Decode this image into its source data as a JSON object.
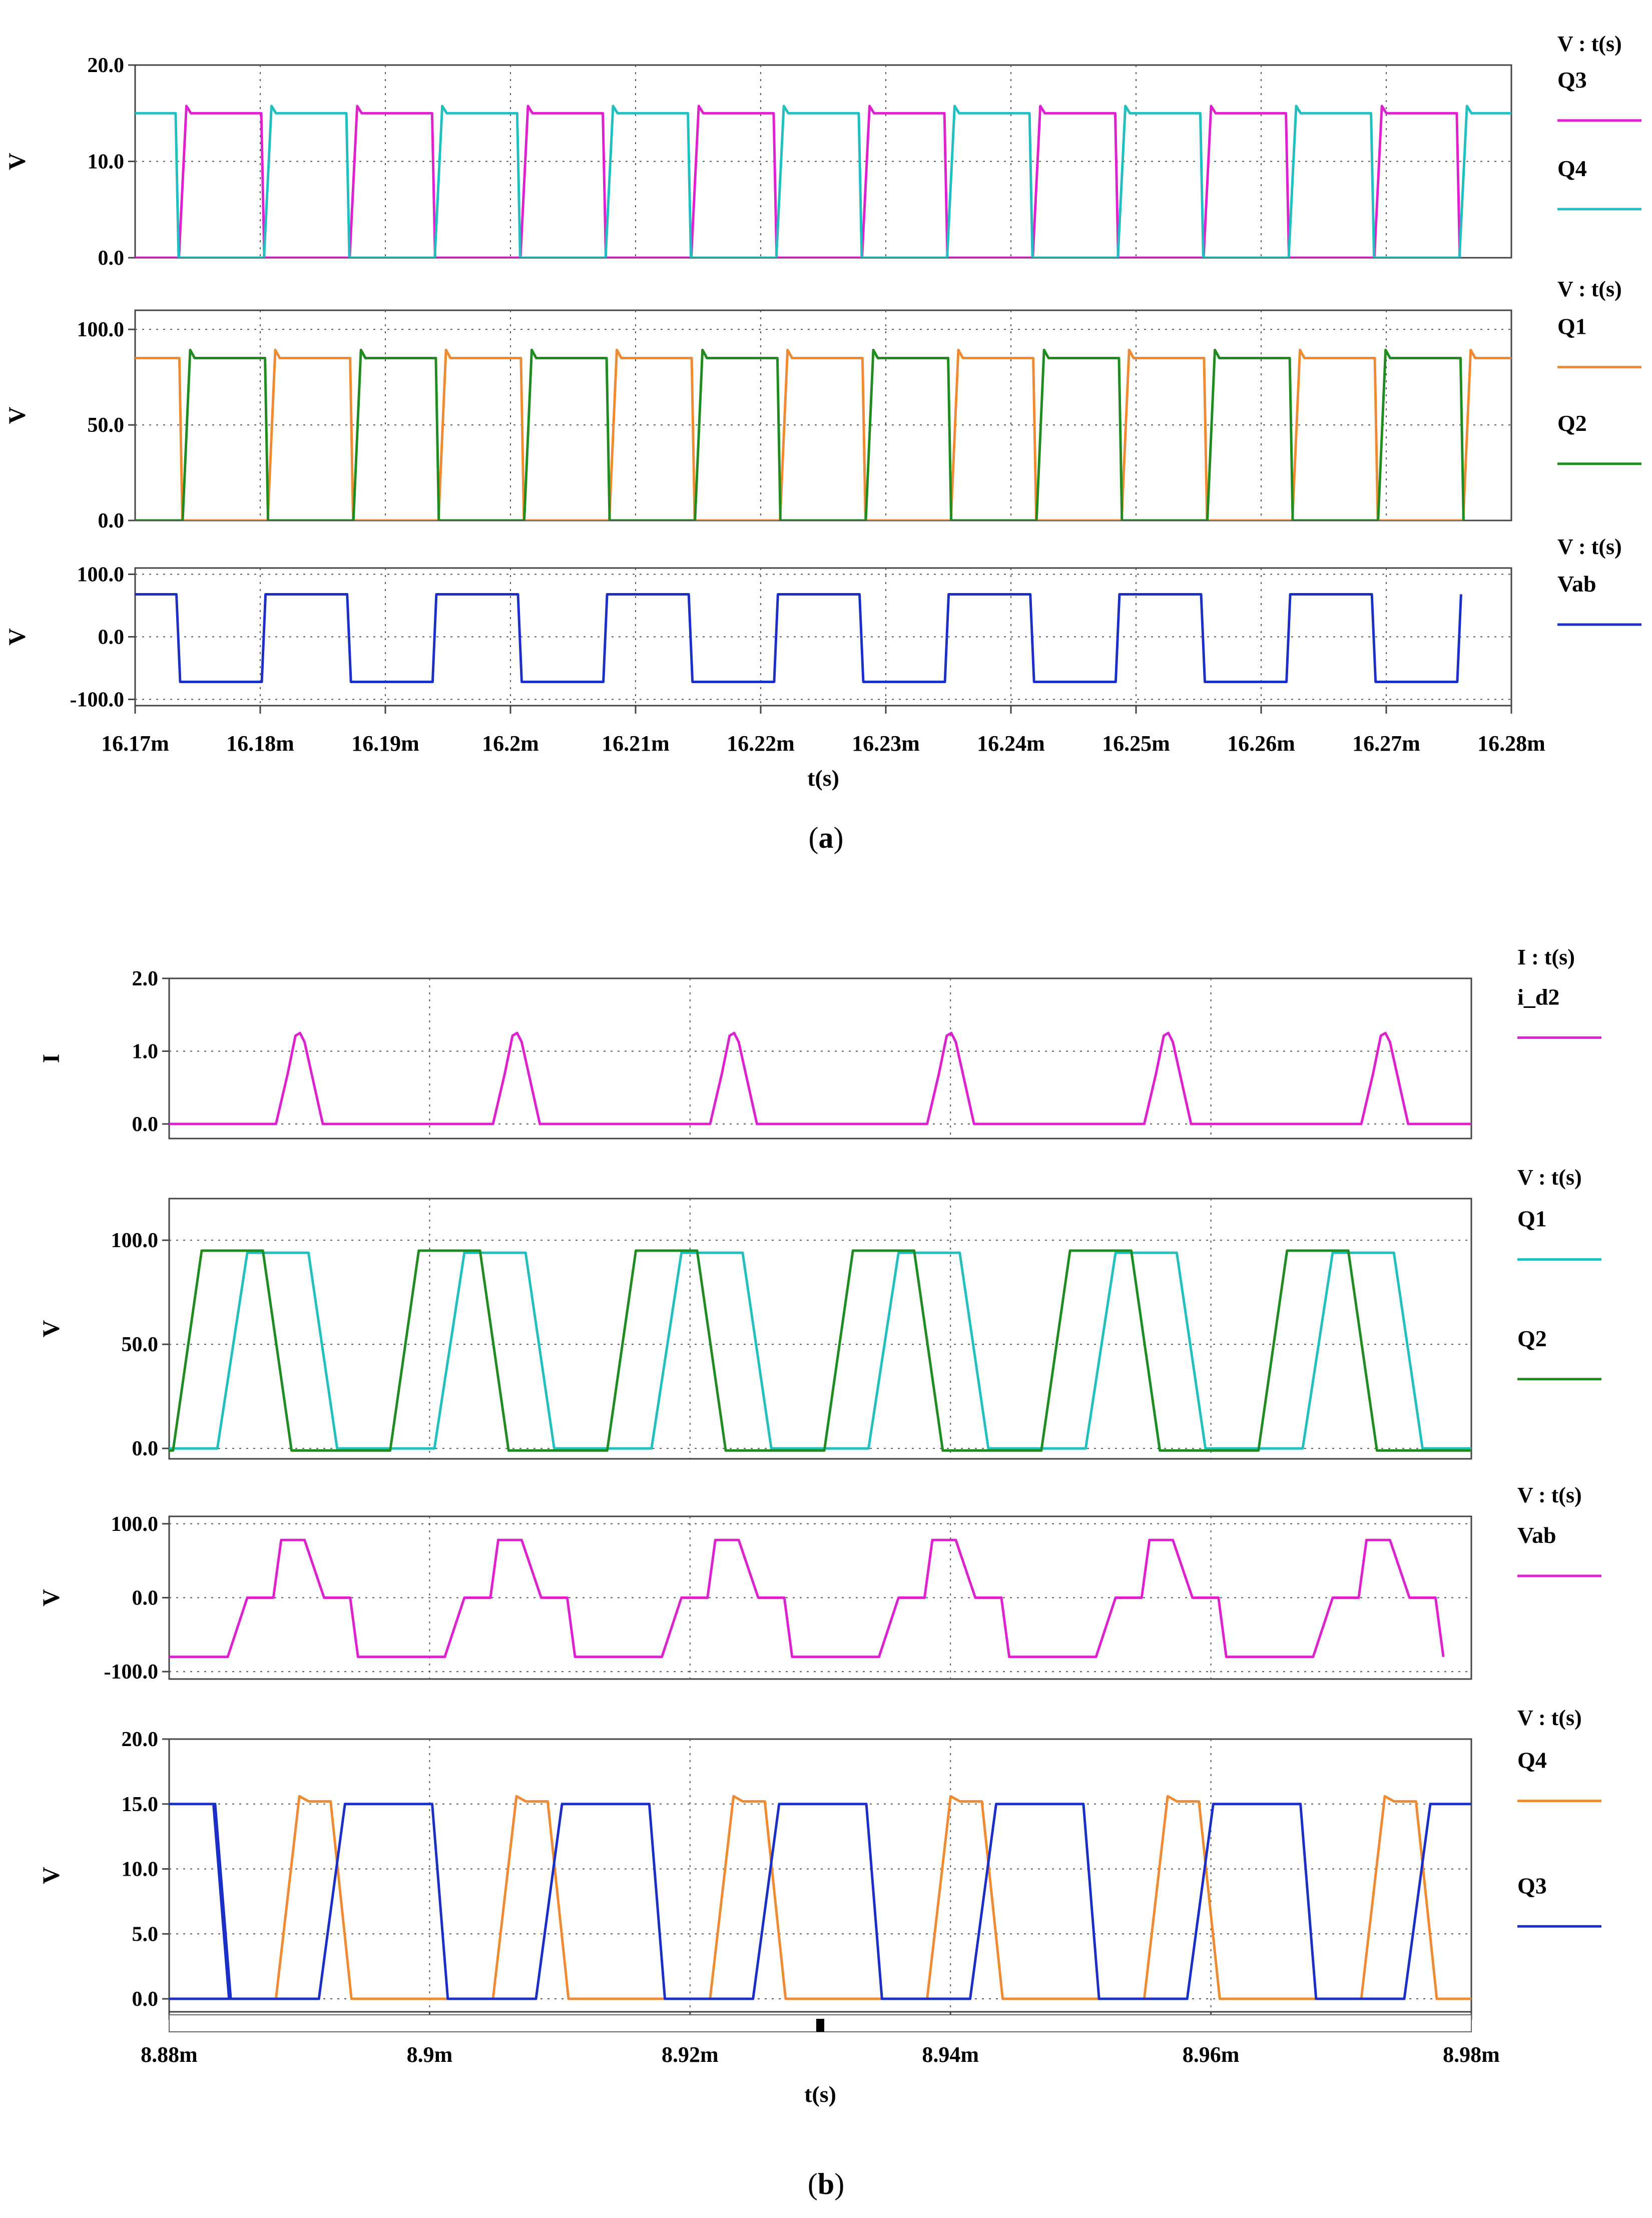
{
  "figures": [
    {
      "caption_label": "a",
      "x_title": "t(s)",
      "x_ticks": [
        "16.17m",
        "16.18m",
        "16.19m",
        "16.2m",
        "16.21m",
        "16.22m",
        "16.23m",
        "16.24m",
        "16.25m",
        "16.26m",
        "16.27m",
        "16.28m"
      ]
    },
    {
      "caption_label": "b",
      "x_title": "t(s)",
      "x_ticks": [
        "8.88m",
        "8.9m",
        "8.92m",
        "8.94m",
        "8.96m",
        "8.98m"
      ]
    }
  ],
  "chart_data": [
    {
      "type": "line",
      "figure": "a",
      "title": "V : t(s)",
      "ylabel": "V",
      "xlim": [
        16.17,
        16.28
      ],
      "ylim": [
        0,
        20
      ],
      "y_ticks": [
        "20.0",
        "10.0",
        "0.0"
      ],
      "y_tick_values": [
        20,
        10,
        0
      ],
      "grid": true,
      "legend_position": "right",
      "series": [
        {
          "name": "Q3",
          "color": "#e020d0",
          "level": 15,
          "first_rise": 16.1735,
          "period": 0.01365,
          "duty": 0.5,
          "ramp": 0.0006,
          "offset_level": 0
        },
        {
          "name": "Q4",
          "color": "#20c0c0",
          "level": 15,
          "first_rise": 16.1803,
          "period": 0.01365,
          "duty": 0.5,
          "ramp": 0.0006,
          "offset_level": 0
        }
      ]
    },
    {
      "type": "line",
      "figure": "a",
      "title": "V : t(s)",
      "ylabel": "V",
      "xlim": [
        16.17,
        16.28
      ],
      "ylim": [
        0,
        110
      ],
      "y_ticks": [
        "100.0",
        "50.0",
        "0.0"
      ],
      "y_tick_values": [
        100,
        50,
        0
      ],
      "grid": true,
      "legend_position": "right",
      "series": [
        {
          "name": "Q1",
          "color": "#f08a30",
          "level": 85,
          "first_rise": 16.1806,
          "period": 0.01365,
          "duty": 0.5,
          "ramp": 0.0006,
          "offset_level": 0
        },
        {
          "name": "Q2",
          "color": "#1e8c1e",
          "level": 85,
          "first_rise": 16.1738,
          "period": 0.01365,
          "duty": 0.5,
          "ramp": 0.0006,
          "offset_level": 0
        }
      ]
    },
    {
      "type": "line",
      "figure": "a",
      "title": "V : t(s)",
      "ylabel": "V",
      "xlim": [
        16.17,
        16.28
      ],
      "ylim": [
        -110,
        110
      ],
      "y_ticks": [
        "100.0",
        "0.0",
        "-100.0"
      ],
      "y_tick_values": [
        100,
        0,
        -100
      ],
      "grid": true,
      "legend_position": "right",
      "series": [
        {
          "name": "Vab",
          "color": "#1a2ec8",
          "kind": "square",
          "high": 68,
          "low": -72,
          "first_fall": 16.1733,
          "period": 0.01365,
          "duty": 0.5,
          "ramp": 0.0003
        }
      ]
    },
    {
      "type": "line",
      "figure": "b",
      "title": "I : t(s)",
      "ylabel": "I",
      "xlim": [
        8.88,
        8.98
      ],
      "ylim": [
        -0.2,
        2.0
      ],
      "y_ticks": [
        "2.0",
        "1.0",
        "0.0"
      ],
      "y_tick_values": [
        2,
        1,
        0
      ],
      "grid": true,
      "legend_position": "right",
      "series": [
        {
          "name": "i_d2",
          "color": "#e020d0",
          "kind": "pulse",
          "peak": 1.25,
          "first_start": 8.8882,
          "period": 0.01667,
          "rise": 0.0015,
          "top": 0.0007,
          "fall": 0.0014
        }
      ]
    },
    {
      "type": "line",
      "figure": "b",
      "title": "V : t(s)",
      "ylabel": "V",
      "xlim": [
        8.88,
        8.98
      ],
      "ylim": [
        -5,
        120
      ],
      "y_ticks": [
        "100.0",
        "50.0",
        "0.0"
      ],
      "y_tick_values": [
        100,
        50,
        0
      ],
      "grid": true,
      "legend_position": "right",
      "series": [
        {
          "name": "Q1",
          "color": "#20c0c0",
          "kind": "trap",
          "high": 94,
          "low": 0,
          "first_rise": 8.8837,
          "period": 0.01667,
          "rise": 0.0023,
          "hold": 0.0047,
          "fall": 0.0022
        },
        {
          "name": "Q2",
          "color": "#1e8c1e",
          "kind": "trap",
          "high": 95,
          "low": -1,
          "first_rise": 8.8803,
          "period": 0.01667,
          "rise": 0.0022,
          "hold": 0.0047,
          "fall": 0.0022
        }
      ]
    },
    {
      "type": "line",
      "figure": "b",
      "title": "V : t(s)",
      "ylabel": "V",
      "xlim": [
        8.88,
        8.98
      ],
      "ylim": [
        -110,
        110
      ],
      "y_ticks": [
        "100.0",
        "0.0",
        "-100.0"
      ],
      "y_tick_values": [
        100,
        0,
        -100
      ],
      "grid": true,
      "legend_position": "right",
      "series": [
        {
          "name": "Vab",
          "color": "#e020d0",
          "kind": "threelevel",
          "high": 78,
          "low": -80,
          "first": 8.8845,
          "period": 0.01667,
          "ramp": 0.0015,
          "zero1": 0.002,
          "hold_high": 0.0018,
          "zero2": 0.002,
          "hold_low": 0.0018
        }
      ]
    },
    {
      "type": "line",
      "figure": "b",
      "title": "V : t(s)",
      "ylabel": "V",
      "xlim": [
        8.88,
        8.98
      ],
      "ylim": [
        -1,
        20
      ],
      "y_ticks": [
        "20.0",
        "15.0",
        "10.0",
        "5.0",
        "0.0"
      ],
      "y_tick_values": [
        20,
        15,
        10,
        5,
        0
      ],
      "grid": true,
      "legend_position": "right",
      "series": [
        {
          "name": "Q4",
          "color": "#f08a30",
          "kind": "trap",
          "high": 15.2,
          "low": 0,
          "first_rise": 8.8882,
          "period": 0.01667,
          "rise": 0.0018,
          "hold": 0.0024,
          "fall": 0.0016,
          "overshoot": 0.4
        },
        {
          "name": "Q3",
          "color": "#1a2ec8",
          "kind": "trap",
          "high": 15,
          "low": 0,
          "first_rise": 8.8915,
          "period": 0.01667,
          "rise": 0.002,
          "hold": 0.0067,
          "fall": 0.0012,
          "start_high": true
        }
      ]
    }
  ]
}
